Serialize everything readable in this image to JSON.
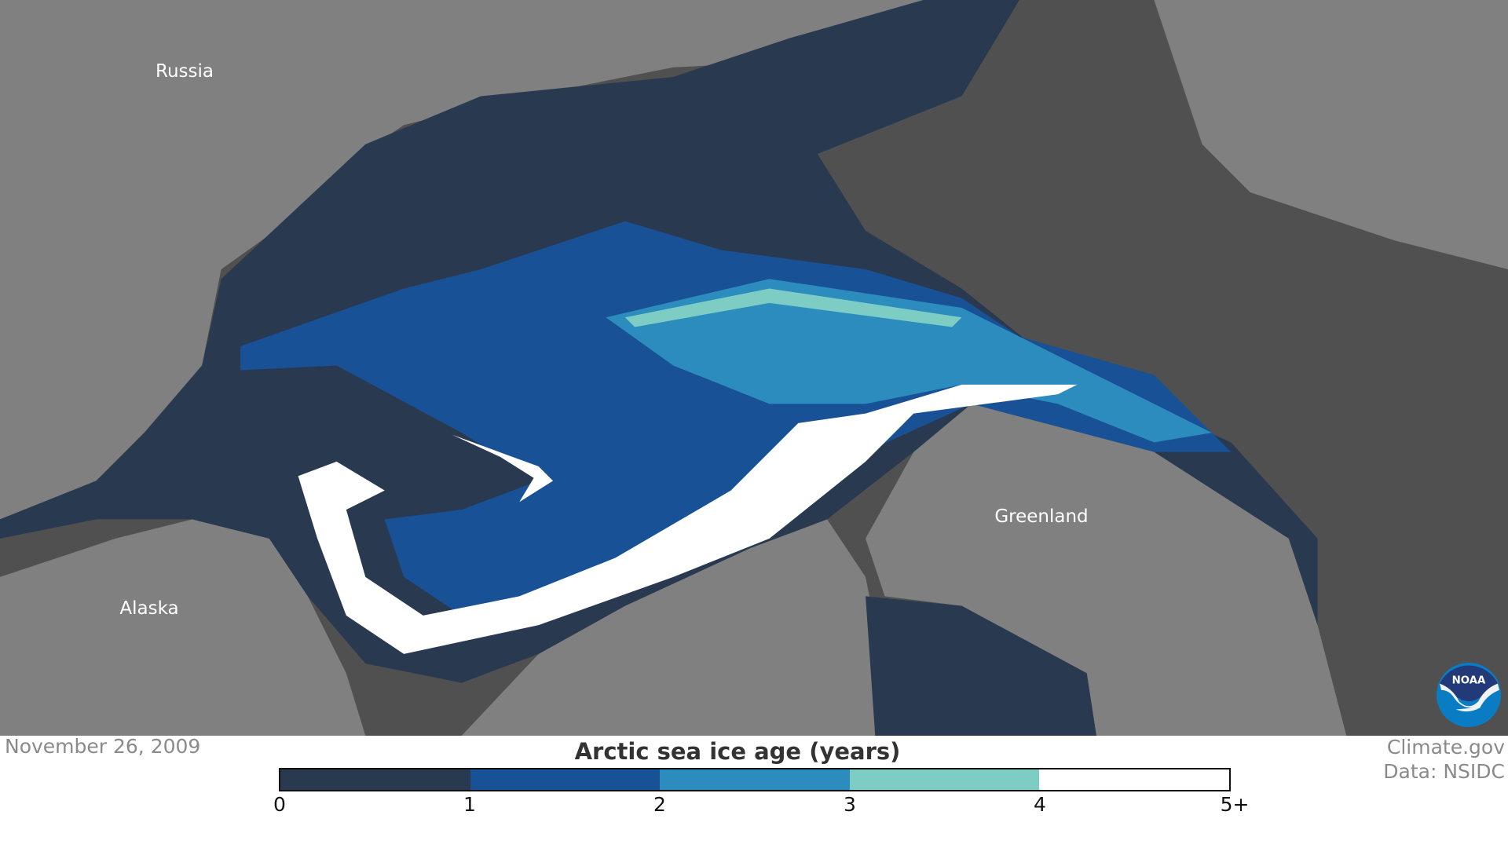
{
  "map": {
    "labels": {
      "russia": "Russia",
      "alaska": "Alaska",
      "greenland": "Greenland"
    },
    "colors": {
      "ocean": "#505050",
      "land": "#808080",
      "age_0_1": "#293a50",
      "age_1_2": "#185196",
      "age_2_3": "#2c8cbe",
      "age_3_4": "#7ecdc4",
      "age_5_plus": "#ffffff"
    }
  },
  "date": "November 26, 2009",
  "credit": {
    "line1": "Climate.gov",
    "line2": "Data: NSIDC"
  },
  "logo": "NOAA",
  "legend": {
    "title": "Arctic sea ice age (years)",
    "colors": [
      "#293a50",
      "#185196",
      "#2c8cbe",
      "#7ecdc4",
      "#ffffff"
    ],
    "ticks": [
      "0",
      "1",
      "2",
      "3",
      "4",
      "5+"
    ]
  }
}
